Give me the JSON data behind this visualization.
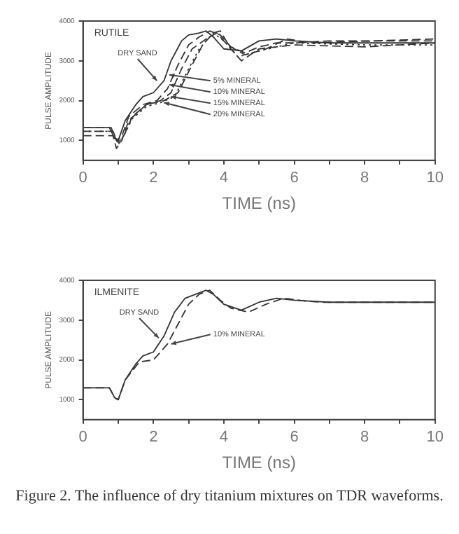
{
  "chart_data": [
    {
      "type": "line",
      "title": "RUTILE",
      "xlabel": "TIME (ns)",
      "ylabel": "PULSE AMPLITUDE",
      "xlim": [
        0,
        10
      ],
      "ylim": [
        500,
        4000
      ],
      "xticks": [
        0,
        {
          "value": 1,
          "label": null
        },
        2,
        {
          "value": 3,
          "label": null
        },
        4,
        {
          "value": 5,
          "label": null
        },
        6,
        {
          "value": 7,
          "label": null
        },
        8,
        {
          "value": 9,
          "label": null
        },
        10
      ],
      "yticks": [
        1000,
        2000,
        3000,
        4000
      ],
      "grid": false,
      "legend": false,
      "series": [
        {
          "color": "#333333",
          "line_style": "solid",
          "x": [
            0,
            0.75,
            0.9,
            1.0,
            1.2,
            1.5,
            1.7,
            2.0,
            2.3,
            2.5,
            2.8,
            3.0,
            3.3,
            3.5,
            3.7,
            4.0,
            4.5,
            5.0,
            5.5,
            6,
            7,
            10
          ],
          "values": [
            1320,
            1320,
            1050,
            1000,
            1500,
            1900,
            2100,
            2200,
            2500,
            3000,
            3500,
            3650,
            3700,
            3750,
            3600,
            3300,
            3250,
            3500,
            3550,
            3500,
            3450,
            3450
          ]
        },
        {
          "color": "#333333",
          "line_style": "dashed",
          "x": [
            0,
            0.8,
            0.95,
            1.1,
            1.3,
            1.7,
            2.1,
            2.4,
            2.7,
            3.0,
            3.3,
            3.6,
            3.9,
            4.2,
            4.6,
            5,
            5.5,
            6,
            7,
            10
          ],
          "values": [
            1320,
            1320,
            1000,
            1100,
            1600,
            1900,
            2000,
            2300,
            2900,
            3400,
            3600,
            3750,
            3650,
            3350,
            3200,
            3350,
            3450,
            3450,
            3500,
            3500
          ]
        },
        {
          "color": "#333333",
          "line_style": "dashed",
          "x": [
            0,
            0.85,
            1.0,
            1.15,
            1.4,
            1.8,
            2.2,
            2.5,
            2.8,
            3.1,
            3.5,
            3.8,
            4.1,
            4.6,
            5.2,
            5.8,
            6.5,
            10
          ],
          "values": [
            1230,
            1230,
            950,
            1100,
            1600,
            1900,
            2000,
            2200,
            2800,
            3300,
            3550,
            3700,
            3400,
            3150,
            3300,
            3550,
            3450,
            3550
          ]
        },
        {
          "color": "#333333",
          "line_style": "dotted",
          "x": [
            0,
            0.85,
            1.0,
            1.15,
            1.4,
            1.8,
            2.2,
            2.6,
            3.0,
            3.3,
            3.7,
            4.0,
            4.4,
            5,
            6,
            8,
            10
          ],
          "values": [
            1230,
            1230,
            900,
            1100,
            1550,
            1850,
            1950,
            2100,
            2800,
            3300,
            3700,
            3500,
            3100,
            3250,
            3450,
            3400,
            3400
          ]
        },
        {
          "color": "#333333",
          "line_style": "dashed",
          "x": [
            0,
            0.85,
            0.95,
            1.1,
            1.3,
            1.8,
            2.3,
            2.7,
            3.1,
            3.4,
            3.7,
            3.9,
            4.2,
            4.5,
            5,
            6,
            8,
            10
          ],
          "values": [
            1120,
            1120,
            800,
            1000,
            1500,
            1900,
            2000,
            2200,
            2900,
            3400,
            3700,
            3750,
            3300,
            3000,
            3300,
            3400,
            3350,
            3450
          ]
        }
      ],
      "annotations": [
        {
          "text": "DRY SAND",
          "x": 2.1,
          "y": 2500
        },
        {
          "text": "5% MINERAL",
          "x": 2.45,
          "y": 2650
        },
        {
          "text": "10% MINERAL",
          "x": 2.45,
          "y": 2400
        },
        {
          "text": "15% MINERAL",
          "x": 2.5,
          "y": 2100
        },
        {
          "text": "20% MINERAL",
          "x": 2.3,
          "y": 1950
        }
      ]
    },
    {
      "type": "line",
      "title": "ILMENITE",
      "xlabel": "TIME (ns)",
      "ylabel": "PULSE AMPLITUDE",
      "xlim": [
        0,
        10
      ],
      "ylim": [
        500,
        4000
      ],
      "xticks": [
        0,
        {
          "value": 1,
          "label": null
        },
        2,
        {
          "value": 3,
          "label": null
        },
        4,
        {
          "value": 5,
          "label": null
        },
        6,
        {
          "value": 7,
          "label": null
        },
        8,
        {
          "value": 9,
          "label": null
        },
        10
      ],
      "yticks": [
        1000,
        2000,
        3000,
        4000
      ],
      "grid": false,
      "legend": false,
      "series": [
        {
          "color": "#333333",
          "line_style": "solid",
          "x": [
            0,
            0.75,
            0.9,
            1.0,
            1.2,
            1.5,
            1.7,
            2.0,
            2.3,
            2.6,
            2.9,
            3.2,
            3.5,
            3.7,
            4.0,
            4.5,
            5,
            5.5,
            6,
            7,
            10
          ],
          "values": [
            1300,
            1300,
            1050,
            1000,
            1500,
            1900,
            2100,
            2200,
            2600,
            3200,
            3550,
            3650,
            3750,
            3650,
            3400,
            3250,
            3450,
            3550,
            3500,
            3450,
            3450
          ]
        },
        {
          "color": "#333333",
          "line_style": "dashed",
          "x": [
            0,
            0.75,
            0.9,
            1.0,
            1.2,
            1.6,
            2.0,
            2.4,
            2.7,
            3.0,
            3.3,
            3.6,
            3.9,
            4.2,
            4.7,
            5.2,
            5.7,
            6.3,
            6.8,
            10
          ],
          "values": [
            1300,
            1300,
            1050,
            1000,
            1500,
            1950,
            2000,
            2400,
            2900,
            3400,
            3650,
            3750,
            3500,
            3300,
            3200,
            3400,
            3550,
            3480,
            3450,
            3450
          ]
        }
      ],
      "annotations": [
        {
          "text": "DRY SAND",
          "x": 2.15,
          "y": 2550
        },
        {
          "text": "10% MINERAL",
          "x": 2.5,
          "y": 2400
        },
        "Figure 2. The influence of dry titanium mixtures on TDR waveforms."
      ]
    }
  ]
}
